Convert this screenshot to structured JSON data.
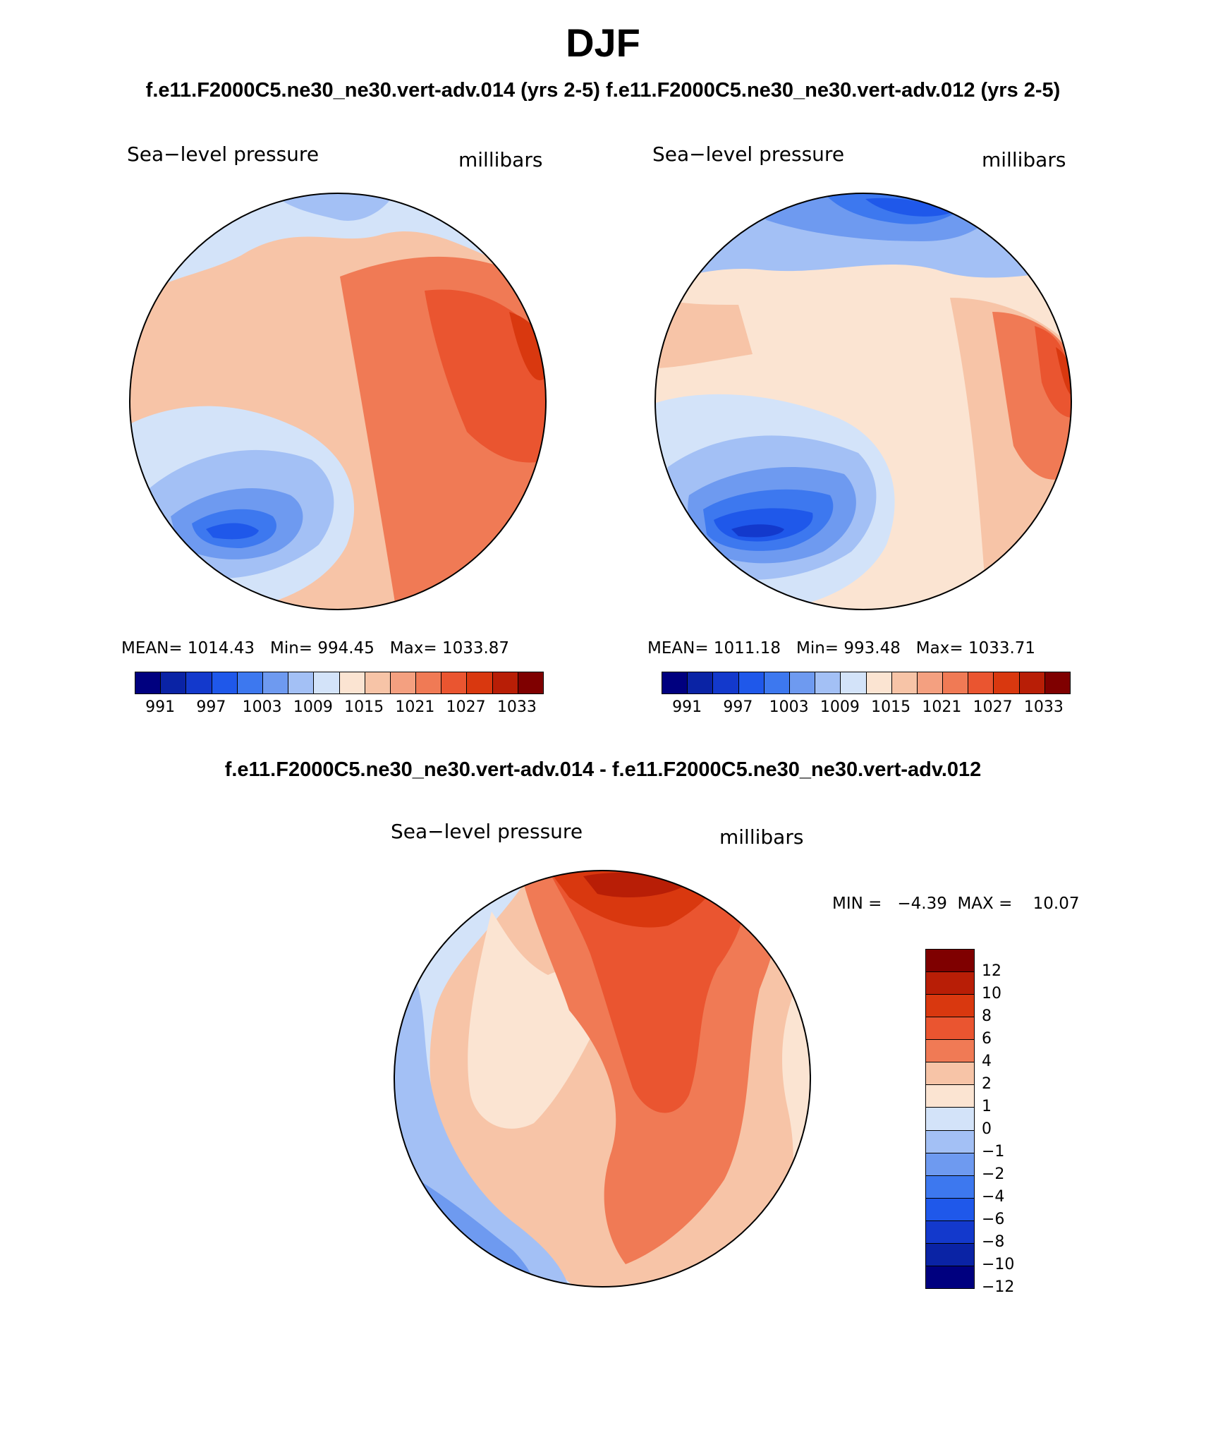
{
  "title": "DJF",
  "case_titles": {
    "left": "f.e11.F2000C5.ne30_ne30.vert-adv.014 (yrs 2-5)",
    "right": "f.e11.F2000C5.ne30_ne30.vert-adv.012 (yrs 2-5)"
  },
  "diff_title": "f.e11.F2000C5.ne30_ne30.vert-adv.014 - f.e11.F2000C5.ne30_ne30.vert-adv.012",
  "panels": [
    {
      "variable": "Sea−level pressure",
      "units": "millibars",
      "mean_label": "MEAN=",
      "mean": "1014.43",
      "min_label": "Min=",
      "min": "994.45",
      "max_label": "Max=",
      "max": "1033.87"
    },
    {
      "variable": "Sea−level pressure",
      "units": "millibars",
      "mean_label": "MEAN=",
      "mean": "1011.18",
      "min_label": "Min=",
      "min": "993.48",
      "max_label": "Max=",
      "max": "1033.71"
    },
    {
      "variable": "Sea−level pressure",
      "units": "millibars",
      "minmax_text": "MIN =   −4.39  MAX =    10.07"
    }
  ],
  "colorbar_field": {
    "colors": [
      "#00007f",
      "#0a23a5",
      "#1339cc",
      "#1f58ea",
      "#3d78ef",
      "#6e9af0",
      "#a3c0f5",
      "#d3e3f9",
      "#fbe4d2",
      "#f7c4a7",
      "#f4a080",
      "#f07a55",
      "#ea5530",
      "#d9380f",
      "#b81e06",
      "#7f0000"
    ],
    "tick_labels": [
      "991",
      "997",
      "1003",
      "1009",
      "1015",
      "1021",
      "1027",
      "1033"
    ]
  },
  "colorbar_diff": {
    "colors": [
      "#7f0000",
      "#b81e06",
      "#d9380f",
      "#ea5530",
      "#f07a55",
      "#f7c4a7",
      "#fbe4d2",
      "#d3e3f9",
      "#a3c0f5",
      "#6e9af0",
      "#3d78ef",
      "#1f58ea",
      "#1339cc",
      "#0a23a5",
      "#00007f"
    ],
    "tick_labels": [
      "12",
      "10",
      "8",
      "6",
      "4",
      "2",
      "1",
      "0",
      "−1",
      "−2",
      "−4",
      "−6",
      "−8",
      "−10",
      "−12"
    ]
  }
}
